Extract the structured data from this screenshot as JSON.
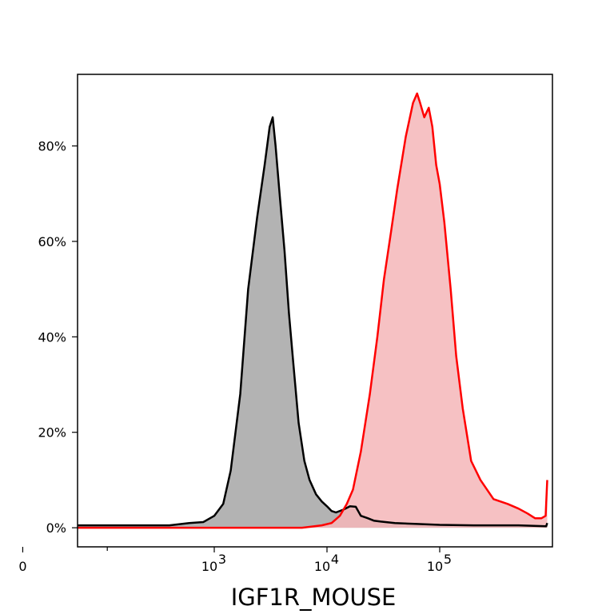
{
  "chart_data": {
    "type": "area",
    "xlabel": "IGF1R_MOUSE",
    "ylabel": "",
    "xscale": "symlog",
    "xlim": [
      0,
      900000
    ],
    "ylim": [
      -4,
      95
    ],
    "grid": false,
    "legend": "none",
    "x_ticks": [
      {
        "value": 0,
        "label": "0"
      },
      {
        "value": 1000,
        "label": "10",
        "exp": "3"
      },
      {
        "value": 10000,
        "label": "10",
        "exp": "4"
      },
      {
        "value": 100000,
        "label": "10",
        "exp": "5"
      }
    ],
    "y_ticks": [
      {
        "value": 0,
        "label": "0%"
      },
      {
        "value": 20,
        "label": "20%"
      },
      {
        "value": 40,
        "label": "40%"
      },
      {
        "value": 60,
        "label": "60%"
      },
      {
        "value": 80,
        "label": "80%"
      }
    ],
    "series": [
      {
        "color": "#000000",
        "fill": "#b3b3b3",
        "x": [
          0,
          200,
          400,
          600,
          800,
          1000,
          1200,
          1400,
          1700,
          2000,
          2400,
          2800,
          3100,
          3300,
          3500,
          3800,
          4200,
          4600,
          5000,
          5600,
          6300,
          7000,
          8000,
          9000,
          10000,
          11000,
          12000,
          14000,
          16000,
          18000,
          20000,
          23000,
          26000,
          30000,
          40000,
          60000,
          100000,
          200000,
          500000,
          880000,
          900000
        ],
        "values": [
          0.5,
          0.5,
          0.5,
          1,
          1.2,
          2.5,
          5,
          12,
          28,
          50,
          65,
          76,
          84,
          86,
          80,
          70,
          58,
          45,
          35,
          22,
          14,
          10,
          7,
          5.5,
          4.5,
          3.5,
          3.2,
          3.8,
          4.5,
          4.4,
          2.5,
          2,
          1.5,
          1.3,
          1,
          0.8,
          0.6,
          0.5,
          0.5,
          0.3,
          1
        ]
      },
      {
        "color": "#ff0000",
        "fill": "#f4b6b8",
        "x": [
          0,
          1000,
          3000,
          6000,
          9000,
          11000,
          13000,
          15000,
          17000,
          20000,
          24000,
          28000,
          32000,
          37000,
          42000,
          50000,
          58000,
          63000,
          67000,
          73000,
          80000,
          86000,
          93000,
          100000,
          110000,
          125000,
          140000,
          160000,
          190000,
          230000,
          300000,
          400000,
          500000,
          600000,
          700000,
          800000,
          870000,
          900000
        ],
        "values": [
          0,
          0,
          0,
          0,
          0.5,
          1,
          2.5,
          5,
          8,
          16,
          28,
          40,
          52,
          62,
          71,
          82,
          89,
          91,
          89,
          86,
          88,
          84,
          76,
          72,
          64,
          50,
          36,
          25,
          14,
          10,
          6,
          5,
          4,
          3,
          2,
          2,
          2.5,
          10
        ]
      }
    ]
  }
}
